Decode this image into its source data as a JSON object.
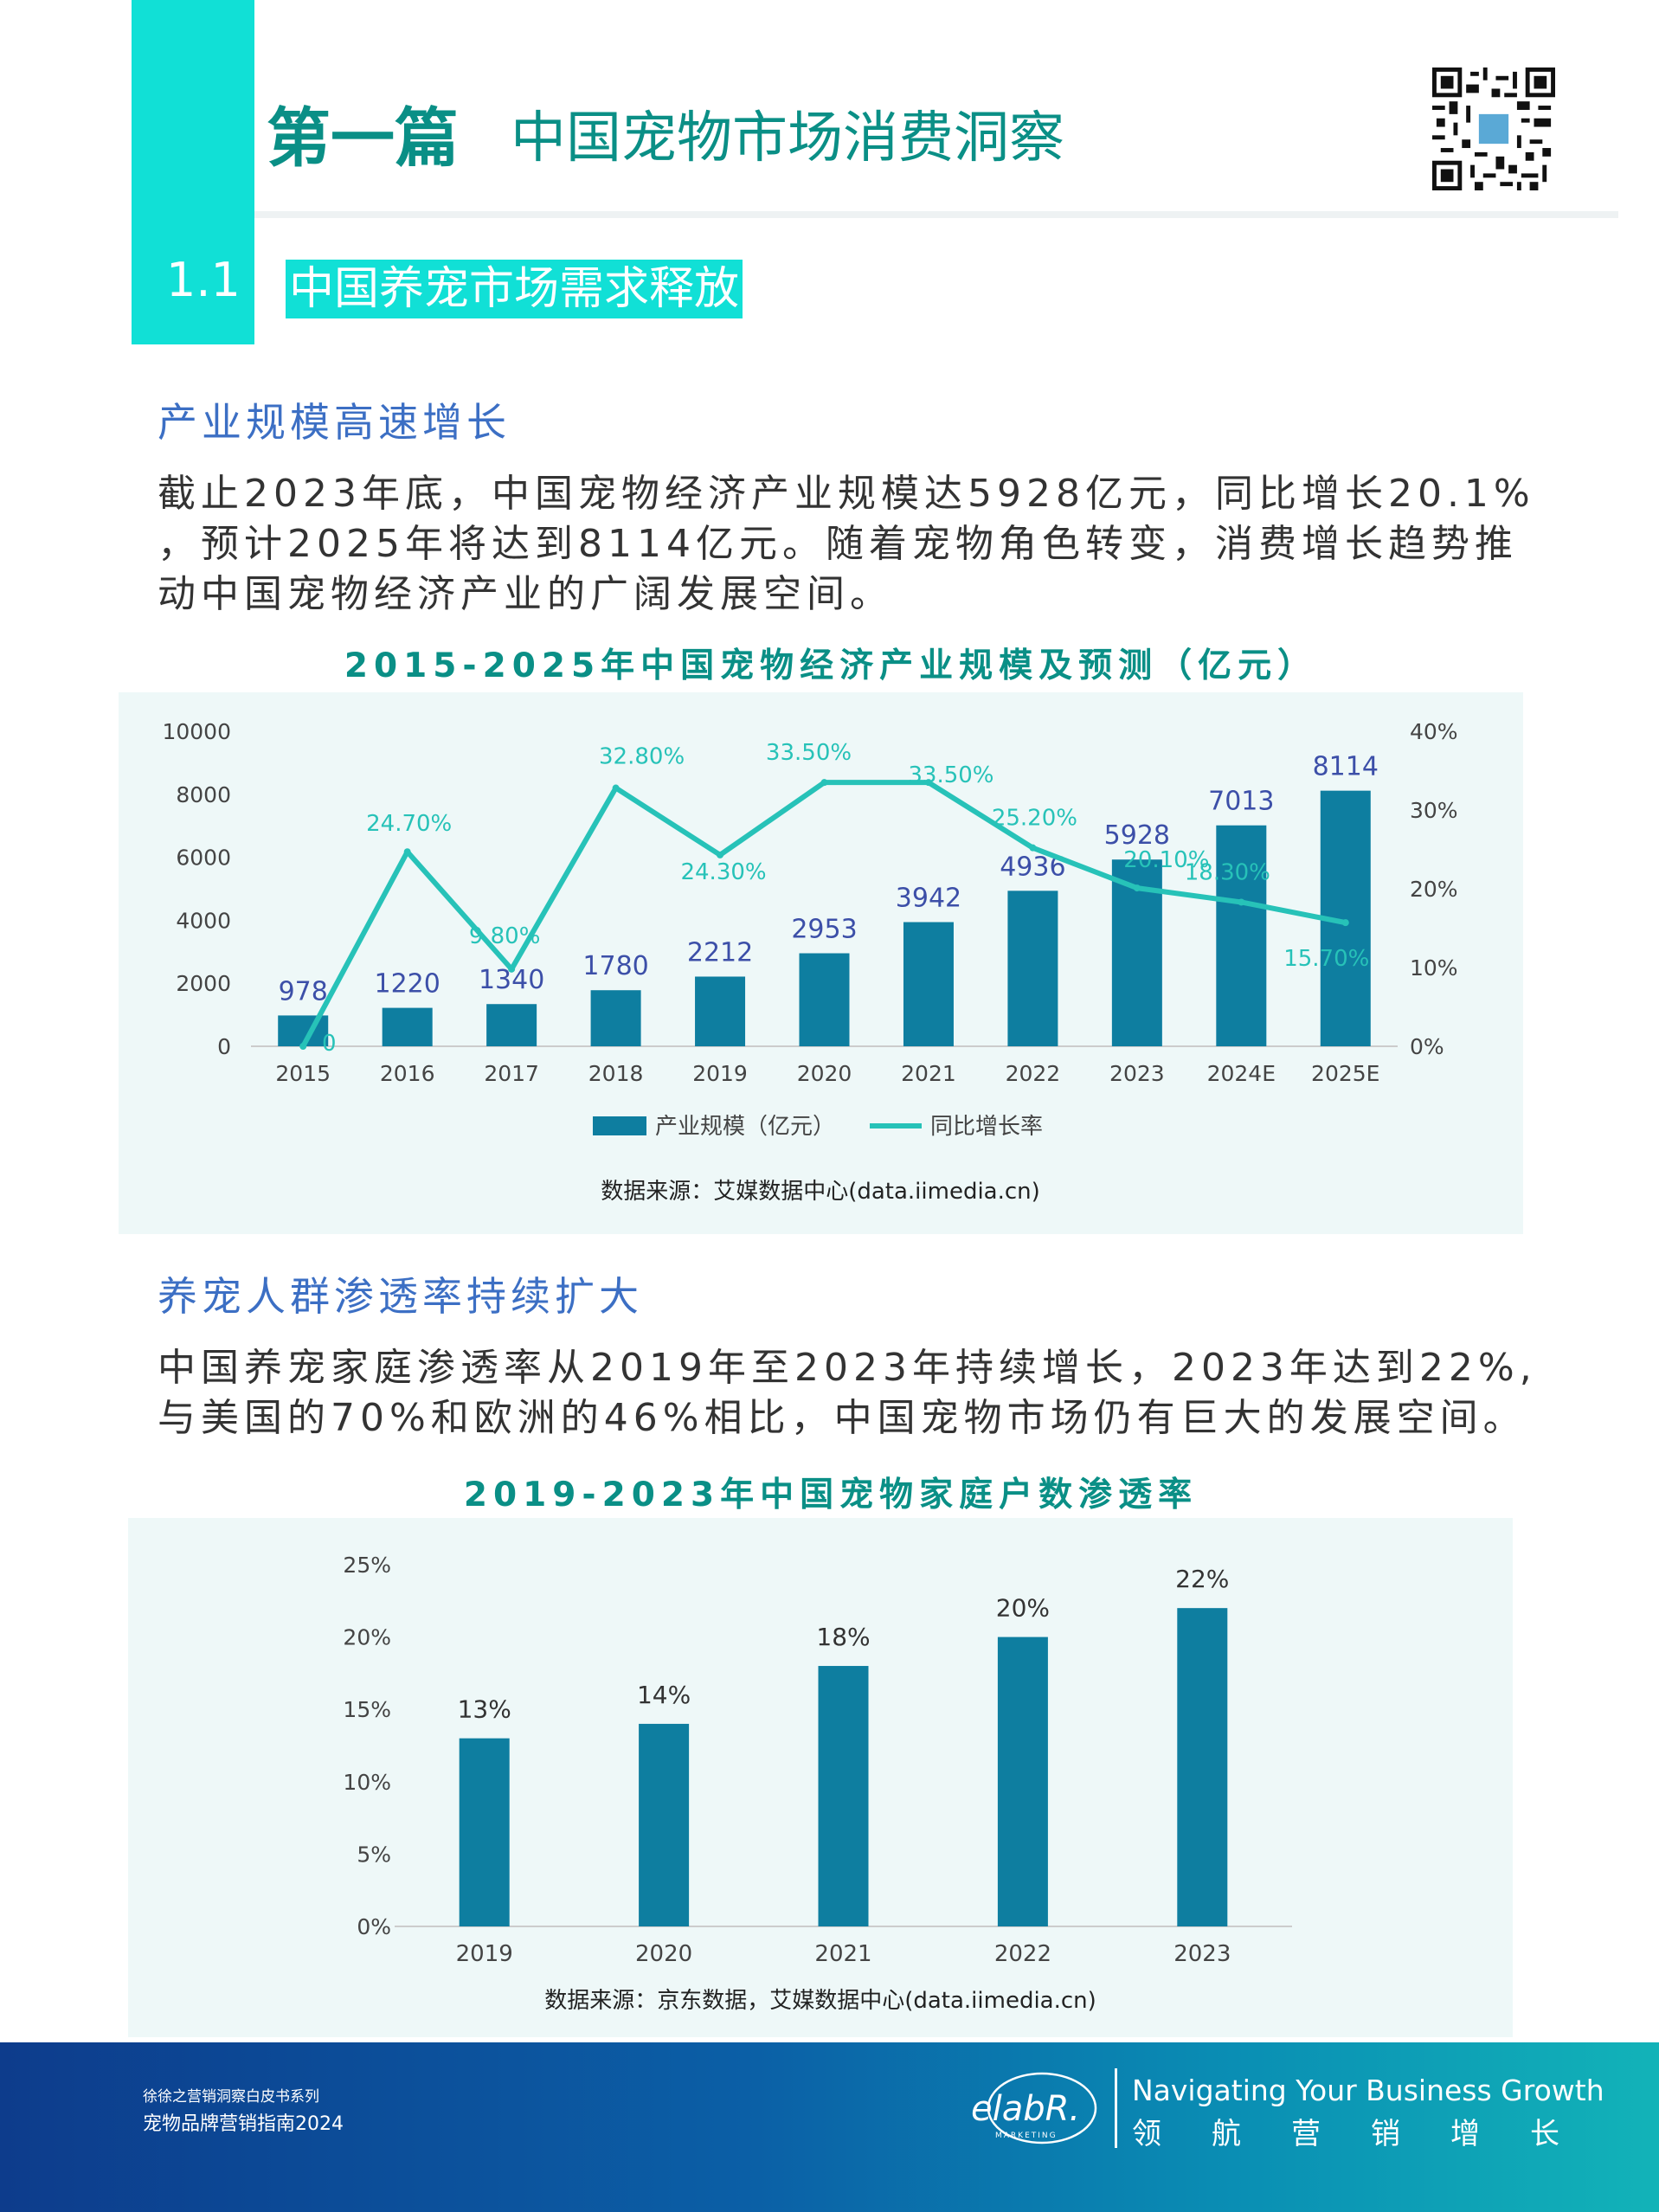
{
  "header": {
    "part_label": "第一篇",
    "part_title": "中国宠物市场消费洞察",
    "section_number": "1.1",
    "section_title": "中国养宠市场需求释放"
  },
  "sections": [
    {
      "heading": "产业规模高速增长",
      "paragraph_lines": [
        "截止2023年底，中国宠物经济产业规模达5928亿元，同比增长20.1%",
        "，预计2025年将达到8114亿元。随着宠物角色转变，消费增长趋势推",
        "动中国宠物经济产业的广阔发展空间。"
      ]
    },
    {
      "heading": "养宠人群渗透率持续扩大",
      "paragraph_lines": [
        "中国养宠家庭渗透率从2019年至2023年持续增长，2023年达到22%,",
        "与美国的70%和欧洲的46%相比，中国宠物市场仍有巨大的发展空间。"
      ]
    }
  ],
  "chart_data": [
    {
      "type": "bar",
      "title": "2015-2025年中国宠物经济产业规模及预测（亿元）",
      "categories": [
        "2015",
        "2016",
        "2017",
        "2018",
        "2019",
        "2020",
        "2021",
        "2022",
        "2023",
        "2024E",
        "2025E"
      ],
      "series": [
        {
          "name": "产业规模（亿元）",
          "type": "bar",
          "axis": "left",
          "values": [
            978,
            1220,
            1340,
            1780,
            2212,
            2953,
            3942,
            4936,
            5928,
            7013,
            8114
          ],
          "labels": [
            "978",
            "1220",
            "1340",
            "1780",
            "2212",
            "2953",
            "3942",
            "4936",
            "5928",
            "7013",
            "8114"
          ],
          "color": "#0e7ea0"
        },
        {
          "name": "同比增长率",
          "type": "line",
          "axis": "right",
          "values": [
            0,
            24.7,
            9.8,
            32.8,
            24.3,
            33.5,
            33.5,
            25.2,
            20.1,
            18.3,
            15.7
          ],
          "labels": [
            "0",
            "24.70%",
            "9.80%",
            "32.80%",
            "24.30%",
            "33.50%",
            "33.50%",
            "25.20%",
            "20.10%",
            "18.30%",
            "15.70%"
          ],
          "color": "#27c2b8"
        }
      ],
      "ylim": [
        0,
        10000
      ],
      "y_ticks": [
        "0",
        "2000",
        "4000",
        "6000",
        "8000",
        "10000"
      ],
      "y2lim": [
        0,
        40
      ],
      "y2_ticks": [
        "0%",
        "10%",
        "20%",
        "30%",
        "40%"
      ],
      "legend": "bottom",
      "source": "数据来源：艾媒数据中心(data.iimedia.cn)"
    },
    {
      "type": "bar",
      "title": "2019-2023年中国宠物家庭户数渗透率",
      "categories": [
        "2019",
        "2020",
        "2021",
        "2022",
        "2023"
      ],
      "values": [
        13,
        14,
        18,
        20,
        22
      ],
      "labels": [
        "13%",
        "14%",
        "18%",
        "20%",
        "22%"
      ],
      "color": "#0e7ea0",
      "ylim": [
        0,
        25
      ],
      "y_ticks": [
        "0%",
        "5%",
        "10%",
        "15%",
        "20%",
        "25%"
      ],
      "source": "数据来源：京东数据，艾媒数据中心(data.iimedia.cn)"
    }
  ],
  "footer": {
    "series_label": "徐徐之营销洞察白皮书系列",
    "book_title": "宠物品牌营销指南2024",
    "logo_text": "elabR.",
    "logo_subtext": "MARKETING",
    "tagline_en": "Navigating Your  Business Growth",
    "tagline_cn": "领航营销增长"
  }
}
